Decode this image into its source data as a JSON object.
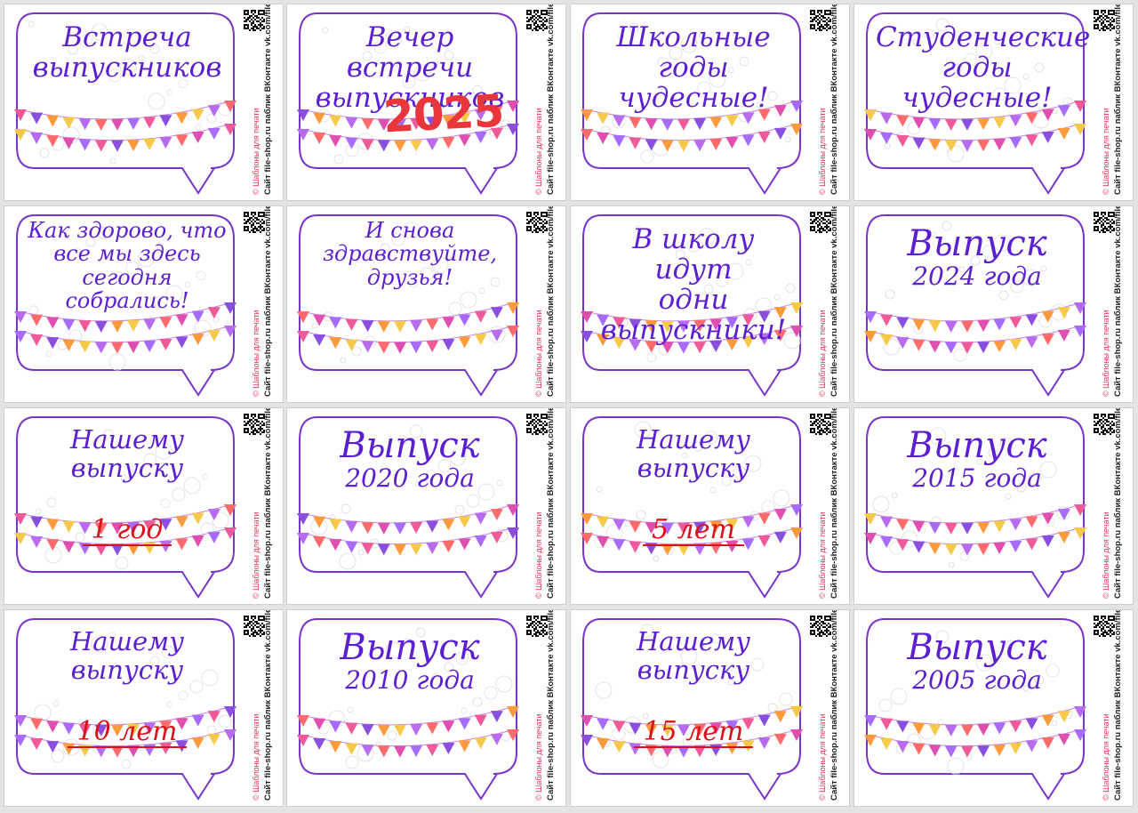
{
  "sheet": {
    "site_label": "Сайт file-shop.ru",
    "vk_label": "паблик ВКонтакте vk.com/file_shop.ru",
    "copyright_label": "© Шаблоны для печати"
  },
  "colors": {
    "purple": "#5b1fd1",
    "bubble_border": "#7a35c8",
    "red": "#e8363b"
  },
  "cards": [
    {
      "lines": [
        "Встреча",
        "выпускников"
      ],
      "extra": ""
    },
    {
      "lines": [
        "Вечер встречи",
        "выпускников"
      ],
      "extra": "2025"
    },
    {
      "lines": [
        "Школьные годы",
        "чудесные!"
      ],
      "extra": ""
    },
    {
      "lines": [
        "Студенческие",
        "годы чудесные!"
      ],
      "extra": ""
    },
    {
      "lines": [
        "Как здорово, что",
        "все мы здесь",
        "сегодня собрались!"
      ],
      "extra": ""
    },
    {
      "lines": [
        "И снова",
        "здравствуйте,",
        "друзья!"
      ],
      "extra": ""
    },
    {
      "lines": [
        "В школу идут",
        "одни выпускники!"
      ],
      "extra": ""
    },
    {
      "lines": [
        "Выпуск",
        "2024 года"
      ],
      "extra": ""
    },
    {
      "lines": [
        "Нашему выпуску"
      ],
      "extra": "1 год"
    },
    {
      "lines": [
        "Выпуск",
        "2020 года"
      ],
      "extra": ""
    },
    {
      "lines": [
        "Нашему выпуску"
      ],
      "extra": "5 лет"
    },
    {
      "lines": [
        "Выпуск",
        "2015 года"
      ],
      "extra": ""
    },
    {
      "lines": [
        "Нашему выпуску"
      ],
      "extra": "10 лет"
    },
    {
      "lines": [
        "Выпуск",
        "2010 года"
      ],
      "extra": ""
    },
    {
      "lines": [
        "Нашему выпуску"
      ],
      "extra": "15 лет"
    },
    {
      "lines": [
        "Выпуск",
        "2005 года"
      ],
      "extra": ""
    }
  ]
}
